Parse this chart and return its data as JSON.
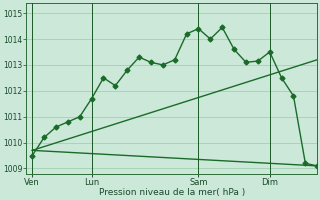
{
  "xlabel": "Pression niveau de la mer( hPa )",
  "bg_color": "#cce8d8",
  "grid_color": "#99ccaa",
  "line_color": "#1a6b2a",
  "dark_line_color": "#1a5a25",
  "ylim": [
    1008.8,
    1015.4
  ],
  "yticks": [
    1009,
    1010,
    1011,
    1012,
    1013,
    1014,
    1015
  ],
  "xtick_labels": [
    "Ven",
    "Lun",
    "Sam",
    "Dim"
  ],
  "xtick_positions": [
    0,
    5,
    14,
    20
  ],
  "vline_positions": [
    0,
    5,
    14,
    20
  ],
  "xlim": [
    -0.5,
    24
  ],
  "series1_x": [
    0,
    1,
    2,
    3,
    4,
    5,
    6,
    7,
    8,
    9,
    10,
    11,
    12,
    13,
    14,
    15,
    16,
    17,
    18,
    19,
    20,
    21,
    22,
    23,
    24
  ],
  "series1_y": [
    1009.5,
    1010.2,
    1010.6,
    1010.8,
    1011.0,
    1011.7,
    1012.5,
    1012.2,
    1012.8,
    1013.3,
    1013.1,
    1013.0,
    1013.2,
    1014.2,
    1014.4,
    1014.0,
    1014.45,
    1013.6,
    1013.1,
    1013.15,
    1013.5,
    1012.5,
    1011.8,
    1009.2,
    1009.1
  ],
  "series2_x": [
    0,
    24
  ],
  "series2_y": [
    1009.7,
    1013.2
  ],
  "series3_x": [
    0,
    24
  ],
  "series3_y": [
    1009.7,
    1009.1
  ],
  "marker_size": 2.5,
  "linewidth": 1.0,
  "straight_linewidth": 1.0
}
